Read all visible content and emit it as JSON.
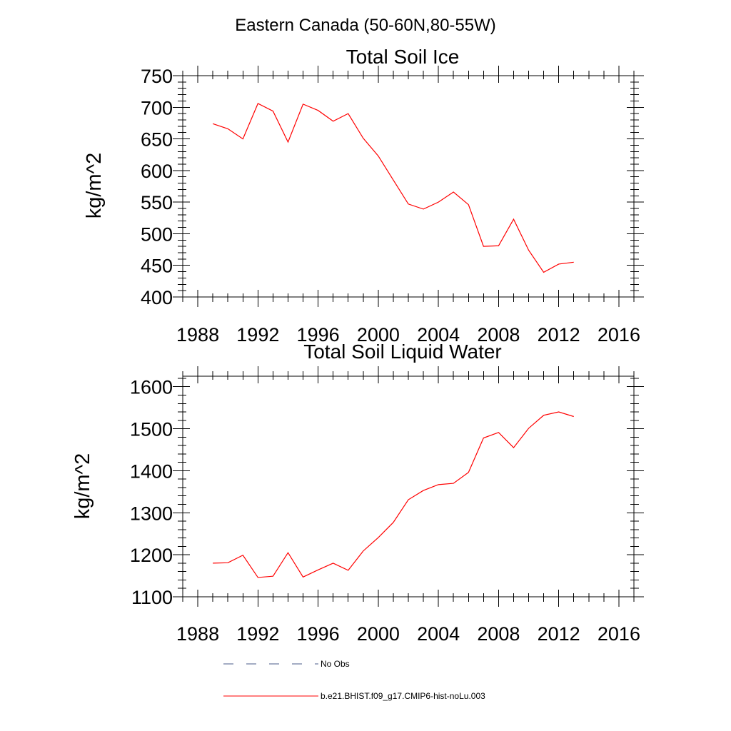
{
  "figure_title": "Eastern Canada (50-60N,80-55W)",
  "chart_data": [
    {
      "type": "line",
      "title": "Total Soil Ice",
      "xlabel": "",
      "ylabel": "kg/m^2",
      "xlim": [
        1987,
        2017
      ],
      "ylim": [
        400,
        750
      ],
      "xticks": [
        1988,
        1992,
        1996,
        2000,
        2004,
        2008,
        2012,
        2016
      ],
      "yticks": [
        400,
        450,
        500,
        550,
        600,
        650,
        700,
        750
      ],
      "grid": false,
      "series": [
        {
          "name": "b.e21.BHIST.f09_g17.CMIP6-hist-noLu.003",
          "color": "#ff0000",
          "x": [
            1989,
            1990,
            1991,
            1992,
            1993,
            1994,
            1995,
            1996,
            1997,
            1998,
            1999,
            2000,
            2001,
            2002,
            2003,
            2004,
            2005,
            2006,
            2007,
            2008,
            2009,
            2010,
            2011,
            2012,
            2013
          ],
          "values": [
            674,
            666,
            650,
            706,
            694,
            645,
            705,
            695,
            678,
            690,
            651,
            623,
            585,
            547,
            539,
            550,
            566,
            546,
            480,
            481,
            523,
            474,
            439,
            452,
            455
          ]
        }
      ]
    },
    {
      "type": "line",
      "title": "Total Soil Liquid Water",
      "xlabel": "",
      "ylabel": "kg/m^2",
      "xlim": [
        1987,
        2017
      ],
      "ylim": [
        1100,
        1625
      ],
      "xticks": [
        1988,
        1992,
        1996,
        2000,
        2004,
        2008,
        2012,
        2016
      ],
      "yticks": [
        1100,
        1200,
        1300,
        1400,
        1500,
        1600
      ],
      "grid": false,
      "series": [
        {
          "name": "b.e21.BHIST.f09_g17.CMIP6-hist-noLu.003",
          "color": "#ff0000",
          "x": [
            1989,
            1990,
            1991,
            1992,
            1993,
            1994,
            1995,
            1996,
            1997,
            1998,
            1999,
            2000,
            2001,
            2002,
            2003,
            2004,
            2005,
            2006,
            2007,
            2008,
            2009,
            2010,
            2011,
            2012,
            2013
          ],
          "values": [
            1180,
            1181,
            1199,
            1146,
            1149,
            1205,
            1147,
            1164,
            1180,
            1163,
            1209,
            1241,
            1277,
            1331,
            1353,
            1367,
            1370,
            1396,
            1478,
            1491,
            1455,
            1501,
            1532,
            1540,
            1529
          ]
        }
      ]
    }
  ],
  "legend": {
    "placement": "bottom",
    "entries": [
      {
        "label": "No Obs",
        "color": "#4a5a8a",
        "style": "dashed"
      },
      {
        "label": "b.e21.BHIST.f09_g17.CMIP6-hist-noLu.003",
        "color": "#ff0000",
        "style": "solid"
      }
    ]
  }
}
